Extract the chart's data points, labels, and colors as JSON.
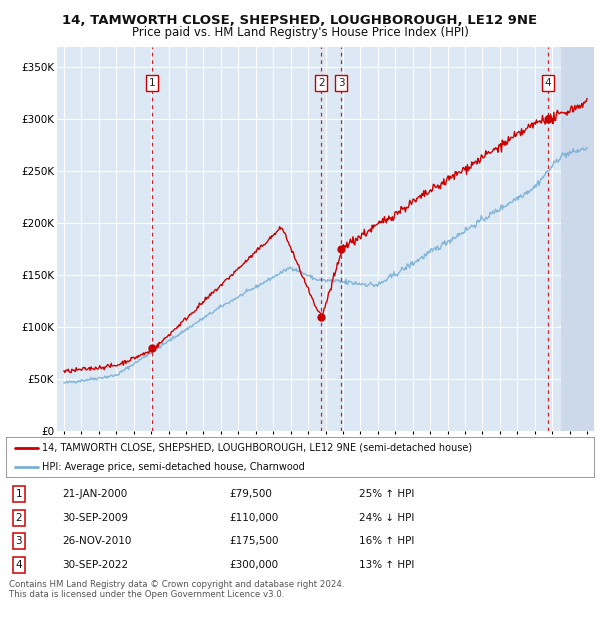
{
  "title": "14, TAMWORTH CLOSE, SHEPSHED, LOUGHBOROUGH, LE12 9NE",
  "subtitle": "Price paid vs. HM Land Registry's House Price Index (HPI)",
  "background_color": "#ffffff",
  "plot_bg_color": "#dce9f5",
  "red_line_color": "#cc0000",
  "blue_line_color": "#7bafd4",
  "vline_color": "#cc0000",
  "grid_color": "#ffffff",
  "ylim": [
    0,
    370000
  ],
  "yticks": [
    0,
    50000,
    100000,
    150000,
    200000,
    250000,
    300000,
    350000
  ],
  "ytick_labels": [
    "£0",
    "£50K",
    "£100K",
    "£150K",
    "£200K",
    "£250K",
    "£300K",
    "£350K"
  ],
  "xlim_start": 1994.6,
  "xlim_end": 2025.4,
  "xtick_years": [
    1995,
    1996,
    1997,
    1998,
    1999,
    2000,
    2001,
    2002,
    2003,
    2004,
    2005,
    2006,
    2007,
    2008,
    2009,
    2010,
    2011,
    2012,
    2013,
    2014,
    2015,
    2016,
    2017,
    2018,
    2019,
    2020,
    2021,
    2022,
    2023,
    2024,
    2025
  ],
  "sale_points": [
    {
      "label": "1",
      "x": 2000.05,
      "price": 79500
    },
    {
      "label": "2",
      "x": 2009.75,
      "price": 110000
    },
    {
      "label": "3",
      "x": 2010.9,
      "price": 175500
    },
    {
      "label": "4",
      "x": 2022.75,
      "price": 300000
    }
  ],
  "legend_red_label": "14, TAMWORTH CLOSE, SHEPSHED, LOUGHBOROUGH, LE12 9NE (semi-detached house)",
  "legend_blue_label": "HPI: Average price, semi-detached house, Charnwood",
  "table_rows": [
    {
      "num": "1",
      "date": "21-JAN-2000",
      "price": "£79,500",
      "hpi": "25% ↑ HPI"
    },
    {
      "num": "2",
      "date": "30-SEP-2009",
      "price": "£110,000",
      "hpi": "24% ↓ HPI"
    },
    {
      "num": "3",
      "date": "26-NOV-2010",
      "price": "£175,500",
      "hpi": "16% ↑ HPI"
    },
    {
      "num": "4",
      "date": "30-SEP-2022",
      "price": "£300,000",
      "hpi": "13% ↑ HPI"
    }
  ],
  "footnote": "Contains HM Land Registry data © Crown copyright and database right 2024.\nThis data is licensed under the Open Government Licence v3.0.",
  "hatch_start_x": 2023.5
}
